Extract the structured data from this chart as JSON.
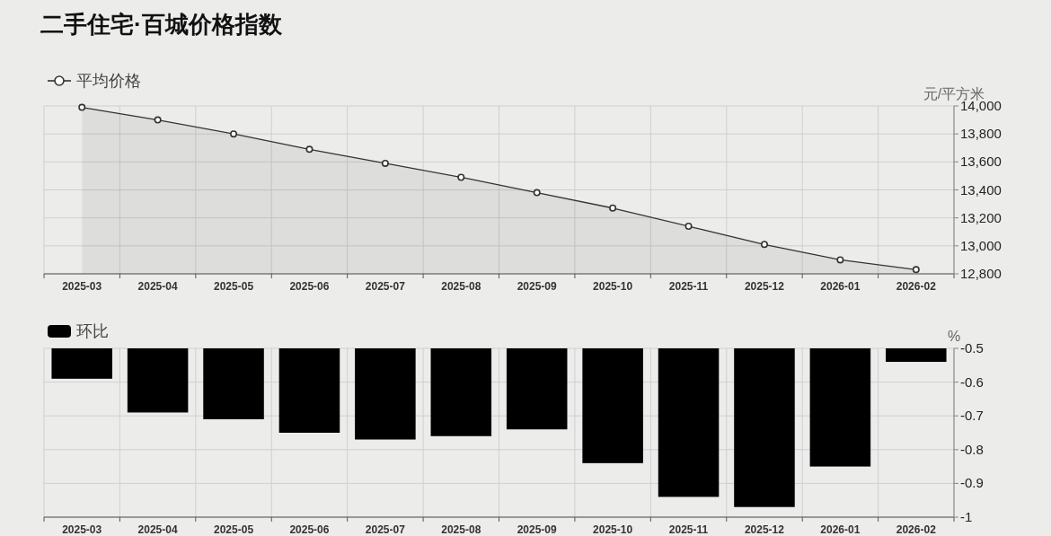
{
  "chart_data": [
    {
      "type": "area",
      "title": "二手住宅·百城价格指数",
      "ylabel": "元/平方米",
      "categories": [
        "2025-03",
        "2025-04",
        "2025-05",
        "2025-06",
        "2025-07",
        "2025-08",
        "2025-09",
        "2025-10",
        "2025-11",
        "2025-12",
        "2026-01",
        "2026-02"
      ],
      "series": [
        {
          "name": "平均价格",
          "color": "#333333",
          "values": [
            13990,
            13900,
            13800,
            13690,
            13590,
            13490,
            13380,
            13270,
            13140,
            13010,
            12900,
            12830
          ]
        }
      ],
      "ylim": [
        12800,
        14000
      ],
      "yticks": [
        {
          "value": 12800,
          "label": "12,800"
        },
        {
          "value": 13000,
          "label": "13,000"
        },
        {
          "value": 13200,
          "label": "13,200"
        },
        {
          "value": 13400,
          "label": "13,400"
        },
        {
          "value": 13600,
          "label": "13,600"
        },
        {
          "value": 13800,
          "label": "13,800"
        },
        {
          "value": 14000,
          "label": "14,000"
        }
      ],
      "grid": true,
      "legend": "top left",
      "marker": "circle"
    },
    {
      "type": "bar",
      "ylabel": "%",
      "categories": [
        "2025-03",
        "2025-04",
        "2025-05",
        "2025-06",
        "2025-07",
        "2025-08",
        "2025-09",
        "2025-10",
        "2025-11",
        "2025-12",
        "2026-01",
        "2026-02"
      ],
      "series": [
        {
          "name": "环比",
          "color": "#000000",
          "values": [
            -0.59,
            -0.69,
            -0.71,
            -0.75,
            -0.77,
            -0.76,
            -0.74,
            -0.84,
            -0.94,
            -0.97,
            -0.85,
            -0.54
          ]
        }
      ],
      "ylim": [
        -1,
        -0.5
      ],
      "yticks": [
        -1,
        -0.9,
        -0.8,
        -0.7,
        -0.6,
        -0.5
      ],
      "grid": true,
      "legend": "top left"
    }
  ]
}
